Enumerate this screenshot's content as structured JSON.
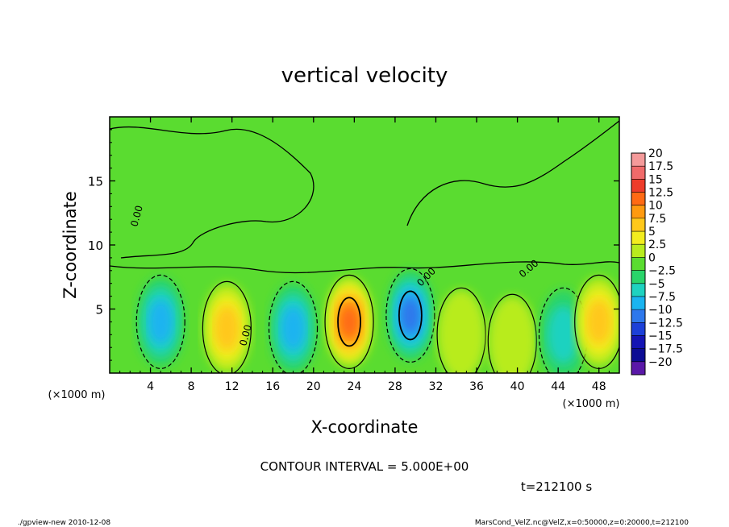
{
  "chart_data": {
    "type": "heatmap",
    "title": "vertical velocity",
    "xlabel": "X-coordinate",
    "ylabel": "Z-coordinate",
    "x_unit_left": "(×1000 m)",
    "x_unit_right": "(×1000 m)",
    "xlim": [
      0,
      50
    ],
    "ylim": [
      0,
      20
    ],
    "x_ticks": [
      4,
      8,
      12,
      16,
      20,
      24,
      28,
      32,
      36,
      40,
      44,
      48
    ],
    "y_ticks": [
      5,
      10,
      15
    ],
    "contour_label": "0.00",
    "contour_interval_text": "CONTOUR INTERVAL = 5.000E+00",
    "time_text": "t=212100 s",
    "colorbar": {
      "labels": [
        "20",
        "17.5",
        "15",
        "12.5",
        "10",
        "7.5",
        "5",
        "2.5",
        "0",
        "−2.5",
        "−5",
        "−7.5",
        "−10",
        "−12.5",
        "−15",
        "−17.5",
        "−20"
      ],
      "colors": [
        "#f49a9a",
        "#f06a6a",
        "#ee3c2a",
        "#ff6a14",
        "#ff9a10",
        "#ffc81a",
        "#f2ec1e",
        "#b8ec1e",
        "#5adc30",
        "#2ad46a",
        "#1ed2c0",
        "#1ab4f0",
        "#2e78ec",
        "#1c40d8",
        "#1414b4",
        "#0c0c94",
        "#5a18a8"
      ]
    },
    "features": [
      {
        "x": 5.0,
        "z": 4.0,
        "value": -7.5
      },
      {
        "x": 11.5,
        "z": 3.5,
        "value": 7.5
      },
      {
        "x": 18.0,
        "z": 3.5,
        "value": -7.5
      },
      {
        "x": 23.5,
        "z": 4.0,
        "value": 12.5
      },
      {
        "x": 29.5,
        "z": 4.5,
        "value": -10
      },
      {
        "x": 34.5,
        "z": 3.0,
        "value": 2.5
      },
      {
        "x": 39.5,
        "z": 2.5,
        "value": 2.5
      },
      {
        "x": 44.5,
        "z": 3.0,
        "value": -5
      },
      {
        "x": 48.0,
        "z": 4.0,
        "value": 7.5
      }
    ]
  },
  "footer": {
    "left": "./gpview-new  2010-12-08",
    "right": "MarsCond_VelZ.nc@VelZ,x=0:50000,z=0:20000,t=212100"
  }
}
